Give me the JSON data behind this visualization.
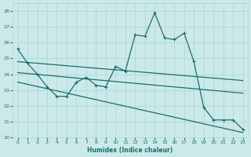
{
  "xlabel": "Humidex (Indice chaleur)",
  "ylabel": "",
  "bg_color": "#cce9e9",
  "grid_color": "#aad4d4",
  "line_color": "#1a6e6e",
  "xlim": [
    -0.5,
    23.5
  ],
  "ylim": [
    20,
    28.5
  ],
  "yticks": [
    20,
    21,
    22,
    23,
    24,
    25,
    26,
    27,
    28
  ],
  "xticks": [
    0,
    1,
    2,
    3,
    4,
    5,
    6,
    7,
    8,
    9,
    10,
    11,
    12,
    13,
    14,
    15,
    16,
    17,
    18,
    19,
    20,
    21,
    22,
    23
  ],
  "line1_x": [
    0,
    1,
    2,
    3,
    4,
    5,
    6,
    7,
    8,
    9,
    10,
    11,
    12,
    13,
    14,
    15,
    16,
    17,
    18,
    19,
    20,
    21,
    22,
    23
  ],
  "line1_y": [
    25.6,
    24.7,
    24.0,
    23.2,
    22.6,
    22.6,
    23.5,
    23.8,
    23.3,
    23.2,
    24.5,
    24.2,
    26.5,
    26.4,
    27.9,
    26.3,
    26.2,
    26.6,
    24.8,
    21.9,
    21.1,
    21.1,
    21.1,
    20.5
  ],
  "line2_x": [
    0,
    23
  ],
  "line2_y": [
    24.8,
    23.6
  ],
  "line3_x": [
    0,
    23
  ],
  "line3_y": [
    24.1,
    22.8
  ],
  "line4_x": [
    0,
    23
  ],
  "line4_y": [
    23.5,
    20.3
  ]
}
